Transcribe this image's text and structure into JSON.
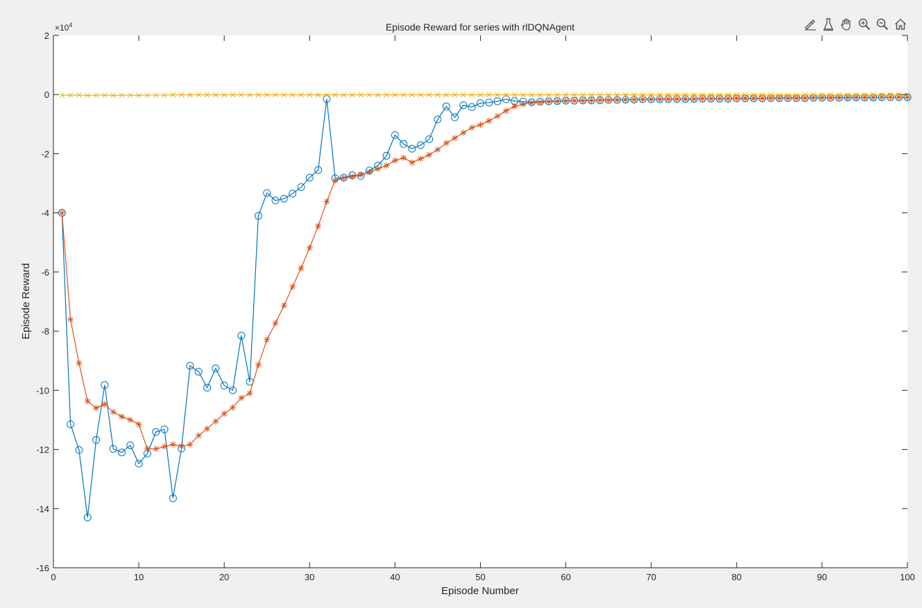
{
  "toolbar": {
    "icons": [
      "brush-edit-icon",
      "data-tips-icon",
      "pan-hand-icon",
      "zoom-in-icon",
      "zoom-out-icon",
      "home-restore-icon"
    ]
  },
  "chart_data": {
    "type": "line",
    "title": "Episode Reward for series with rlDQNAgent",
    "xlabel": "Episode Number",
    "ylabel": "Episode Reward",
    "xlim": [
      0,
      100
    ],
    "ylim": [
      -160000,
      20000
    ],
    "y_exponent_label": "×10",
    "y_exponent_power": "4",
    "x_ticks": [
      0,
      10,
      20,
      30,
      40,
      50,
      60,
      70,
      80,
      90,
      100
    ],
    "y_ticks": [
      20000,
      0,
      -20000,
      -40000,
      -60000,
      -80000,
      -100000,
      -120000,
      -140000,
      -160000
    ],
    "x_tick_labels": [
      "0",
      "10",
      "20",
      "30",
      "40",
      "50",
      "60",
      "70",
      "80",
      "90",
      "100"
    ],
    "y_tick_labels": [
      "2",
      "0",
      "-2",
      "-4",
      "-6",
      "-8",
      "-10",
      "-12",
      "-14",
      "-16"
    ],
    "grid": false,
    "legend": "none",
    "colors": {
      "background": "#f0f0f0",
      "axes": "#ffffff",
      "axis_line": "#262626",
      "series1": "#0072bd",
      "series2": "#d95319",
      "series3": "#edb120"
    },
    "series": [
      {
        "marker": "circle",
        "color": "#0072bd",
        "values": [
          -40000,
          -111500,
          -120200,
          -143000,
          -116800,
          -98200,
          -119800,
          -121000,
          -118600,
          -124800,
          -121400,
          -114100,
          -113200,
          -136500,
          -119700,
          -91700,
          -93700,
          -99100,
          -92600,
          -98400,
          -100000,
          -81500,
          -97100,
          -41000,
          -33300,
          -35800,
          -35200,
          -33500,
          -31300,
          -28100,
          -25500,
          -1500,
          -28300,
          -28100,
          -27300,
          -27500,
          -25700,
          -24000,
          -20700,
          -13700,
          -16700,
          -18300,
          -17100,
          -15100,
          -8400,
          -4000,
          -7700,
          -3600,
          -4200,
          -2900,
          -2700,
          -2300,
          -1600,
          -2200,
          -2400,
          -2600,
          -2400,
          -2300,
          -2200,
          -2100,
          -2100,
          -2000,
          -2000,
          -1900,
          -1800,
          -1800,
          -1700,
          -1700,
          -1600,
          -1600,
          -1600,
          -1500,
          -1500,
          -1500,
          -1500,
          -1400,
          -1400,
          -1400,
          -1400,
          -1300,
          -1300,
          -1300,
          -1300,
          -1200,
          -1200,
          -1200,
          -1200,
          -1200,
          -1100,
          -1100,
          -1100,
          -1100,
          -1000,
          -1000,
          -1000,
          -1000,
          -900,
          -900,
          -900,
          -900
        ]
      },
      {
        "marker": "asterisk",
        "color": "#d95319",
        "values": [
          -40000,
          -76000,
          -90800,
          -103700,
          -106000,
          -104700,
          -107300,
          -108900,
          -110000,
          -111500,
          -119800,
          -119800,
          -119000,
          -118300,
          -118900,
          -118300,
          -115300,
          -113000,
          -110500,
          -107900,
          -105800,
          -102600,
          -101000,
          -91400,
          -82900,
          -77300,
          -71300,
          -65000,
          -58700,
          -51800,
          -44500,
          -36200,
          -29000,
          -28200,
          -27700,
          -27100,
          -26200,
          -25100,
          -24000,
          -22300,
          -21400,
          -23000,
          -21700,
          -20400,
          -18600,
          -16400,
          -14700,
          -12900,
          -11200,
          -10200,
          -8900,
          -7300,
          -5500,
          -4000,
          -3200,
          -2800,
          -2600,
          -2400,
          -2300,
          -2200,
          -2100,
          -2100,
          -2000,
          -1900,
          -1900,
          -1800,
          -1700,
          -1700,
          -1600,
          -1600,
          -1600,
          -1500,
          -1500,
          -1500,
          -1500,
          -1400,
          -1400,
          -1400,
          -1400,
          -1300,
          -1300,
          -1300,
          -1300,
          -1200,
          -1200,
          -1200,
          -1200,
          -1200,
          -1100,
          -1100,
          -1100,
          -1100,
          -1000,
          -1000,
          -1000,
          -1000,
          -900,
          -900,
          -900,
          -900
        ]
      },
      {
        "marker": "x",
        "color": "#edb120",
        "values": [
          -200,
          -200,
          -200,
          -300,
          -200,
          -200,
          -300,
          -200,
          -200,
          -300,
          -200,
          -200,
          -200,
          -100,
          -100,
          -100,
          -100,
          -100,
          -100,
          -100,
          -100,
          -100,
          -100,
          -100,
          -100,
          -100,
          -100,
          -100,
          -100,
          -100,
          -100,
          -100,
          -100,
          -100,
          -100,
          -100,
          -100,
          -100,
          -100,
          -100,
          -100,
          -100,
          -100,
          -100,
          -100,
          -100,
          -100,
          -100,
          -100,
          -100,
          -100,
          -100,
          -100,
          -100,
          -100,
          -100,
          -100,
          -100,
          -100,
          -100,
          -100,
          -100,
          -100,
          -100,
          -100,
          -100,
          -100,
          -100,
          -100,
          -100,
          -100,
          -100,
          -100,
          -100,
          -100,
          -100,
          -100,
          -100,
          -100,
          -100,
          -100,
          -100,
          -100,
          -100,
          -100,
          -100,
          -100,
          -100,
          -100,
          -100,
          -100,
          -100,
          -100,
          -100,
          -100,
          -100,
          -100,
          -100,
          -100,
          -100
        ]
      }
    ]
  }
}
